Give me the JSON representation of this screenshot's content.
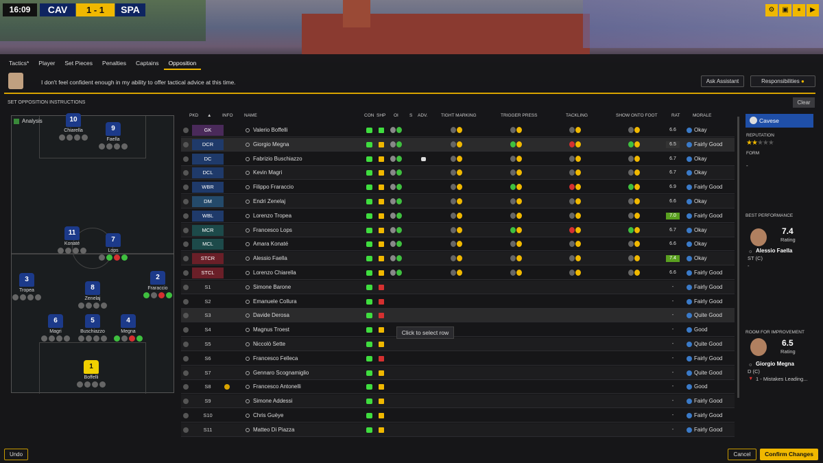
{
  "header": {
    "time": "16:09",
    "home": "CAV",
    "score": "1 - 1",
    "away": "SPA",
    "controls": [
      "gear-icon",
      "stop-icon",
      "pause-icon",
      "play-icon"
    ]
  },
  "tabs": [
    "Tactics*",
    "Player",
    "Set Pieces",
    "Penalties",
    "Captains",
    "Opposition"
  ],
  "assistant": {
    "message": "I don't feel confident enough in my ability to offer tactical advice at this time.",
    "ask_label": "Ask Assistant",
    "resp_label": "Responsibilities"
  },
  "section": {
    "title": "SET OPPOSITION INSTRUCTIONS",
    "clear": "Clear",
    "analysis": "Analysis"
  },
  "formation": [
    {
      "num": "10",
      "name": "Chiarella"
    },
    {
      "num": "9",
      "name": "Faella"
    },
    {
      "num": "11",
      "name": "Konaté"
    },
    {
      "num": "7",
      "name": "Lops"
    },
    {
      "num": "3",
      "name": "Tropea"
    },
    {
      "num": "8",
      "name": "Zenelaj"
    },
    {
      "num": "2",
      "name": "Fraraccio"
    },
    {
      "num": "6",
      "name": "Magri"
    },
    {
      "num": "5",
      "name": "Buschiazzo"
    },
    {
      "num": "4",
      "name": "Megna"
    },
    {
      "num": "1",
      "name": "Boffelli"
    }
  ],
  "columns": [
    "PKD",
    "INFO",
    "NAME",
    "CON",
    "SHP",
    "OI",
    "S",
    "ADV.",
    "TIGHT MARKING",
    "TRIGGER PRESS",
    "TACKLING",
    "SHOW ONTO FOOT",
    "RAT",
    "MORALE"
  ],
  "rows": [
    {
      "pos": "GK",
      "name": "Valerio Boffelli",
      "rat": "6.6",
      "morale": "Okay"
    },
    {
      "pos": "DCR",
      "name": "Giorgio Megna",
      "rat": "6.5",
      "morale": "Fairly Good"
    },
    {
      "pos": "DC",
      "name": "Fabrizio Buschiazzo",
      "rat": "6.7",
      "morale": "Okay"
    },
    {
      "pos": "DCL",
      "name": "Kevin Magri",
      "rat": "6.7",
      "morale": "Okay"
    },
    {
      "pos": "WBR",
      "name": "Filippo Fraraccio",
      "rat": "6.9",
      "morale": "Fairly Good"
    },
    {
      "pos": "DM",
      "name": "Endri Zenelaj",
      "rat": "6.6",
      "morale": "Okay"
    },
    {
      "pos": "WBL",
      "name": "Lorenzo Tropea",
      "rat": "7.0",
      "morale": "Fairly Good"
    },
    {
      "pos": "MCR",
      "name": "Francesco Lops",
      "rat": "6.7",
      "morale": "Okay"
    },
    {
      "pos": "MCL",
      "name": "Amara Konaté",
      "rat": "6.6",
      "morale": "Okay"
    },
    {
      "pos": "STCR",
      "name": "Alessio Faella",
      "rat": "7.4",
      "morale": "Okay"
    },
    {
      "pos": "STCL",
      "name": "Lorenzo Chiarella",
      "rat": "6.6",
      "morale": "Fairly Good"
    },
    {
      "pos": "S1",
      "name": "Simone Barone",
      "rat": "-",
      "morale": "Fairly Good"
    },
    {
      "pos": "S2",
      "name": "Emanuele Collura",
      "rat": "-",
      "morale": "Fairly Good"
    },
    {
      "pos": "S3",
      "name": "Davide Derosa",
      "rat": "-",
      "morale": "Quite Good"
    },
    {
      "pos": "S4",
      "name": "Magnus Troest",
      "rat": "-",
      "morale": "Good"
    },
    {
      "pos": "S5",
      "name": "Niccolò Sette",
      "rat": "-",
      "morale": "Quite Good"
    },
    {
      "pos": "S6",
      "name": "Francesco Felleca",
      "rat": "-",
      "morale": "Fairly Good"
    },
    {
      "pos": "S7",
      "name": "Gennaro Scognamiglio",
      "rat": "-",
      "morale": "Quite Good"
    },
    {
      "pos": "S8",
      "name": "Francesco Antonelli",
      "rat": "-",
      "morale": "Good"
    },
    {
      "pos": "S9",
      "name": "Simone Addessi",
      "rat": "-",
      "morale": "Fairly Good"
    },
    {
      "pos": "S10",
      "name": "Chris Guèye",
      "rat": "-",
      "morale": "Fairly Good"
    },
    {
      "pos": "S11",
      "name": "Matteo Di Piazza",
      "rat": "-",
      "morale": "Fairly Good"
    }
  ],
  "tooltip": "Click to select row",
  "side": {
    "opponent": "Cavese",
    "reputation_label": "REPUTATION",
    "reputation_stars": 2,
    "form_label": "FORM",
    "form_value": "-",
    "best_label": "BEST PERFORMANCE",
    "best_rating": "7.4",
    "best_rating_label": "Rating",
    "best_name": "Alessio Faella",
    "best_pos": "ST (C)",
    "best_extra": "-",
    "improve_label": "ROOM FOR IMPROVEMENT",
    "improve_rating": "6.5",
    "improve_rating_label": "Rating",
    "improve_name": "Giorgio Megna",
    "improve_pos": "D (C)",
    "improve_note": "1 - Mistakes Leading..."
  },
  "footer": {
    "undo": "Undo",
    "cancel": "Cancel",
    "confirm": "Confirm Changes"
  }
}
